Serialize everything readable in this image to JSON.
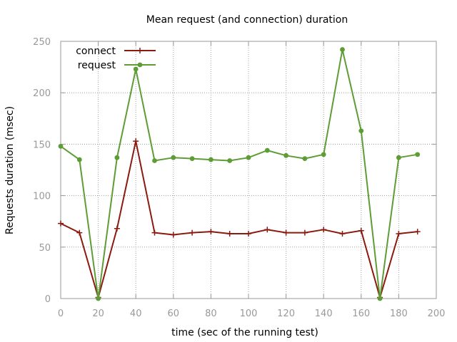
{
  "chart_data": {
    "type": "line",
    "title": "Mean request (and connection) duration",
    "xlabel": "time (sec of the running test)",
    "ylabel": "Requests duration (msec)",
    "xlim": [
      0,
      200
    ],
    "ylim": [
      0,
      250
    ],
    "xticks": [
      "0",
      "20",
      "40",
      "60",
      "80",
      "100",
      "120",
      "140",
      "160",
      "180",
      "200"
    ],
    "yticks": [
      "0",
      "50",
      "100",
      "150",
      "200",
      "250"
    ],
    "grid": true,
    "legend_position": "top-left",
    "x": [
      0,
      10,
      20,
      30,
      40,
      50,
      60,
      70,
      80,
      90,
      100,
      110,
      120,
      130,
      140,
      150,
      160,
      170,
      180,
      190
    ],
    "series": [
      {
        "name": "connect",
        "color": "#8b1a0e",
        "marker": "plus",
        "values": [
          73,
          64,
          1,
          68,
          153,
          64,
          62,
          64,
          65,
          63,
          63,
          67,
          64,
          64,
          67,
          63,
          66,
          1,
          63,
          65
        ]
      },
      {
        "name": "request",
        "color": "#5e9c36",
        "marker": "circle",
        "values": [
          148,
          135,
          0,
          137,
          223,
          134,
          137,
          136,
          135,
          134,
          137,
          144,
          139,
          136,
          140,
          242,
          163,
          0,
          137,
          140
        ]
      }
    ]
  }
}
